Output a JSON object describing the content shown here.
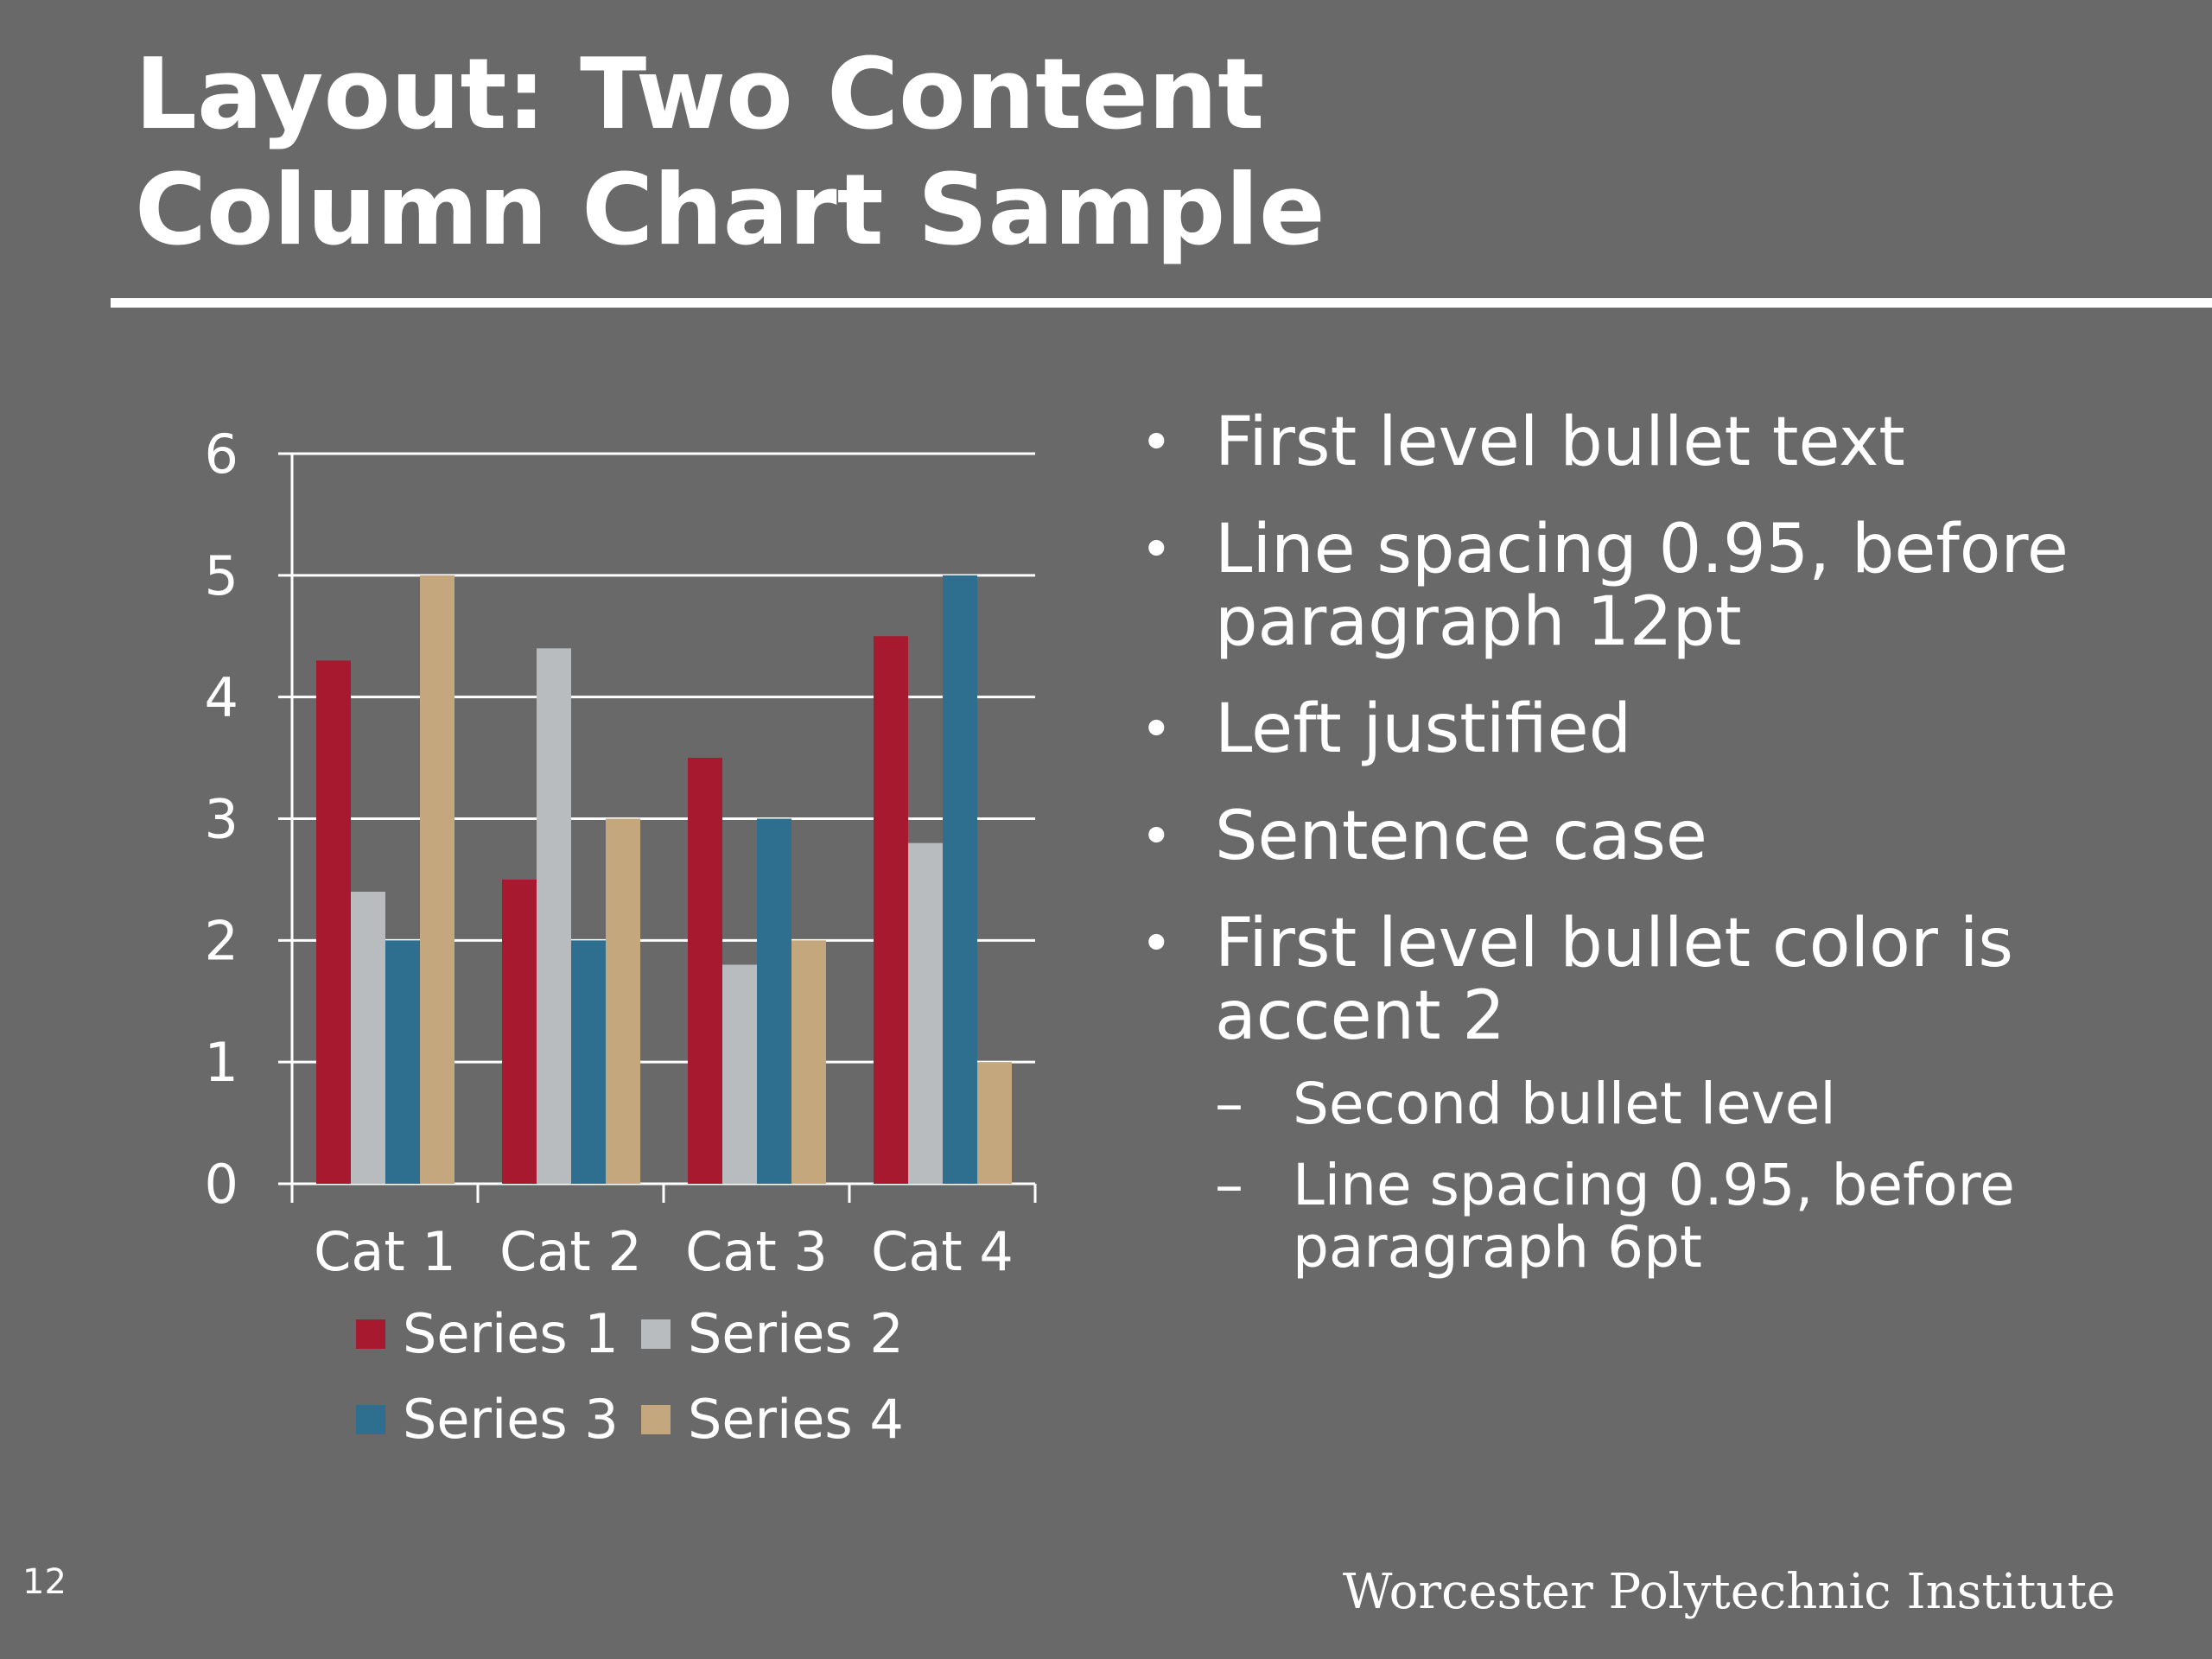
{
  "slide": {
    "title": "Layout: Two Content\nColumn Chart Sample",
    "page_number": "12",
    "footer": "Worcester Polytechnic Institute"
  },
  "bullets": [
    {
      "text": "First level bullet text",
      "subs": []
    },
    {
      "text": "Line spacing 0.95, before paragraph 12pt",
      "subs": []
    },
    {
      "text": "Left justified",
      "subs": []
    },
    {
      "text": "Sentence case",
      "subs": []
    },
    {
      "text": "First level bullet color is accent 2",
      "subs": [
        "Second bullet level",
        "Line spacing 0.95, before paragraph 6pt"
      ]
    }
  ],
  "chart_data": {
    "type": "bar",
    "categories": [
      "Cat 1",
      "Cat 2",
      "Cat 3",
      "Cat 4"
    ],
    "series": [
      {
        "name": "Series 1",
        "color": "#a6192e",
        "values": [
          4.3,
          2.5,
          3.5,
          4.5
        ]
      },
      {
        "name": "Series 2",
        "color": "#b9bcbe",
        "values": [
          2.4,
          4.4,
          1.8,
          2.8
        ]
      },
      {
        "name": "Series 3",
        "color": "#2e6e8e",
        "values": [
          2,
          2,
          3,
          5
        ]
      },
      {
        "name": "Series 4",
        "color": "#c4a77d",
        "values": [
          5,
          3,
          2,
          1
        ]
      }
    ],
    "ylim": [
      0,
      6
    ],
    "yticks": [
      "0",
      "1",
      "2",
      "3",
      "4",
      "5",
      "6"
    ],
    "grid": true,
    "legend_position": "bottom"
  }
}
